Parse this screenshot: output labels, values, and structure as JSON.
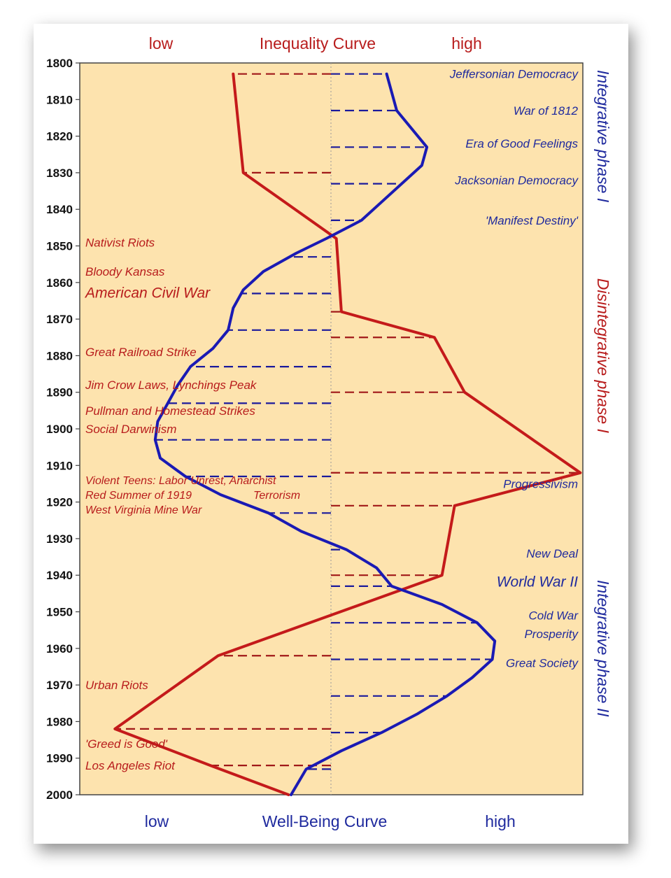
{
  "chart_data": {
    "type": "line",
    "top_axis": {
      "title": "Inequality Curve",
      "low": "low",
      "high": "high"
    },
    "bottom_axis": {
      "title": "Well-Being Curve",
      "low": "low",
      "high": "high"
    },
    "ylim": [
      1800,
      2000
    ],
    "yticks": [
      1800,
      1810,
      1820,
      1830,
      1840,
      1850,
      1860,
      1870,
      1880,
      1890,
      1900,
      1910,
      1920,
      1930,
      1940,
      1950,
      1960,
      1970,
      1980,
      1990,
      2000
    ],
    "xlim": [
      0,
      100
    ],
    "series": [
      {
        "key": "inequality",
        "color": "#c41a1a",
        "points": [
          {
            "year": 1803,
            "v": 30.5
          },
          {
            "year": 1830,
            "v": 32.5
          },
          {
            "year": 1848,
            "v": 51
          },
          {
            "year": 1868,
            "v": 52
          },
          {
            "year": 1875,
            "v": 70.5
          },
          {
            "year": 1890,
            "v": 76.5
          },
          {
            "year": 1912,
            "v": 99.5
          },
          {
            "year": 1921,
            "v": 74.5
          },
          {
            "year": 1940,
            "v": 72
          },
          {
            "year": 1962,
            "v": 27.5
          },
          {
            "year": 1982,
            "v": 7
          },
          {
            "year": 1992,
            "v": 26
          },
          {
            "year": 2000,
            "v": 41.5
          }
        ],
        "dashes": [
          1803,
          1830,
          1868,
          1875,
          1890,
          1912,
          1921,
          1940,
          1962,
          1982,
          1992
        ]
      },
      {
        "key": "wellbeing",
        "color": "#1a1ab4",
        "points": [
          {
            "year": 1803,
            "v": 61
          },
          {
            "year": 1813,
            "v": 63
          },
          {
            "year": 1823,
            "v": 69
          },
          {
            "year": 1828,
            "v": 68
          },
          {
            "year": 1838,
            "v": 60
          },
          {
            "year": 1843,
            "v": 56
          },
          {
            "year": 1848,
            "v": 49
          },
          {
            "year": 1852,
            "v": 43
          },
          {
            "year": 1857,
            "v": 36.5
          },
          {
            "year": 1862,
            "v": 32.5
          },
          {
            "year": 1867,
            "v": 30.5
          },
          {
            "year": 1873,
            "v": 29.5
          },
          {
            "year": 1878,
            "v": 26.5
          },
          {
            "year": 1883,
            "v": 22
          },
          {
            "year": 1888,
            "v": 19.5
          },
          {
            "year": 1893,
            "v": 17.5
          },
          {
            "year": 1898,
            "v": 15.5
          },
          {
            "year": 1903,
            "v": 15
          },
          {
            "year": 1908,
            "v": 16
          },
          {
            "year": 1913,
            "v": 21
          },
          {
            "year": 1918,
            "v": 28
          },
          {
            "year": 1923,
            "v": 37.5
          },
          {
            "year": 1928,
            "v": 44
          },
          {
            "year": 1933,
            "v": 53
          },
          {
            "year": 1938,
            "v": 59
          },
          {
            "year": 1943,
            "v": 62
          },
          {
            "year": 1948,
            "v": 72
          },
          {
            "year": 1953,
            "v": 79
          },
          {
            "year": 1958,
            "v": 82.5
          },
          {
            "year": 1963,
            "v": 82
          },
          {
            "year": 1968,
            "v": 78
          },
          {
            "year": 1973,
            "v": 73
          },
          {
            "year": 1978,
            "v": 67
          },
          {
            "year": 1983,
            "v": 60
          },
          {
            "year": 1988,
            "v": 52
          },
          {
            "year": 1993,
            "v": 45
          },
          {
            "year": 2000,
            "v": 42
          }
        ],
        "dashes": [
          1803,
          1813,
          1823,
          1833,
          1843,
          1853,
          1863,
          1873,
          1883,
          1893,
          1903,
          1913,
          1923,
          1933,
          1943,
          1953,
          1963,
          1973,
          1983,
          1993
        ]
      }
    ],
    "left_events": [
      {
        "label": "Nativist Riots",
        "year": 1849,
        "size": 17
      },
      {
        "label": "Bloody Kansas",
        "year": 1857,
        "size": 17
      },
      {
        "label": "American Civil War",
        "year": 1863,
        "size": 21
      },
      {
        "label": "Great Railroad Strike",
        "year": 1879,
        "size": 17
      },
      {
        "label": "Jim Crow Laws, Lynchings Peak",
        "year": 1888,
        "size": 17
      },
      {
        "label": "Pullman and Homestead Strikes",
        "year": 1895,
        "size": 17
      },
      {
        "label": "Social Darwinism",
        "year": 1900,
        "size": 17
      },
      {
        "label": "Violent Teens: Labor Unrest, Anarchist",
        "year": 1914,
        "size": 16
      },
      {
        "label": "Red Summer of 1919",
        "year": 1918,
        "size": 16
      },
      {
        "label": "Terrorism",
        "year": 1918,
        "size": 16,
        "v": 34.5
      },
      {
        "label": "West Virginia Mine War",
        "year": 1922,
        "size": 16
      },
      {
        "label": "Urban Riots",
        "year": 1970,
        "size": 17
      },
      {
        "label": "'Greed is Good'",
        "year": 1986,
        "size": 17
      },
      {
        "label": "Los Angeles Riot",
        "year": 1992,
        "size": 17
      }
    ],
    "right_events": [
      {
        "label": "Jeffersonian Democracy",
        "year": 1803,
        "size": 17
      },
      {
        "label": "War of 1812",
        "year": 1813,
        "size": 17
      },
      {
        "label": "Era of Good Feelings",
        "year": 1822,
        "size": 17
      },
      {
        "label": "Jacksonian Democracy",
        "year": 1832,
        "size": 17
      },
      {
        "label": "'Manifest Destiny'",
        "year": 1843,
        "size": 17
      },
      {
        "label": "Progressivism",
        "year": 1915,
        "size": 17
      },
      {
        "label": "New Deal",
        "year": 1934,
        "size": 17
      },
      {
        "label": "World War II",
        "year": 1942,
        "size": 21
      },
      {
        "label": "Cold War",
        "year": 1951,
        "size": 17
      },
      {
        "label": "Prosperity",
        "year": 1956,
        "size": 17
      },
      {
        "label": "Great Society",
        "year": 1964,
        "size": 17
      }
    ],
    "phases": [
      {
        "label": "Integrative phase I",
        "year_mid": 1820,
        "color": "#1f2a9e"
      },
      {
        "label": "Disintegrative phase I",
        "year_mid": 1880,
        "color": "#b81c1c"
      },
      {
        "label": "Integrative phase II",
        "year_mid": 1960,
        "color": "#1f2a9e"
      }
    ]
  }
}
